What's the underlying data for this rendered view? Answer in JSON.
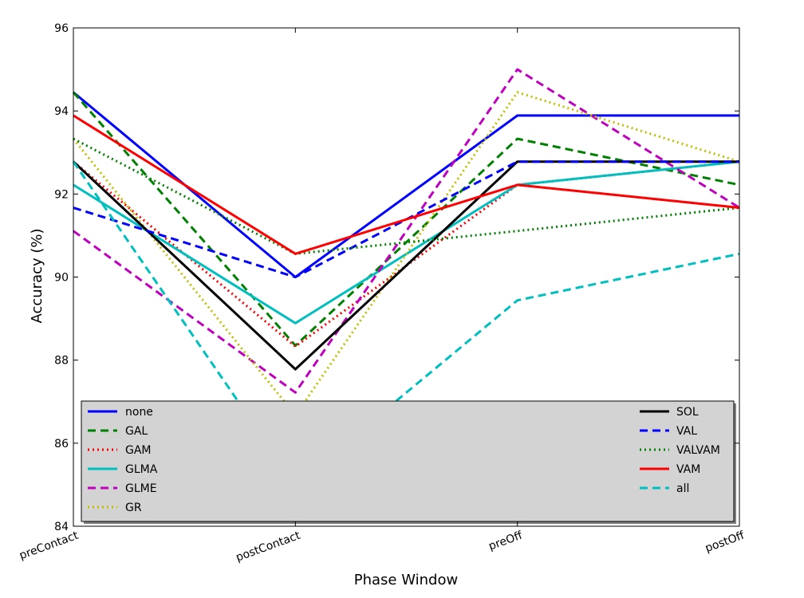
{
  "chart_data": {
    "type": "line",
    "xlabel": "Phase Window",
    "ylabel": "Accuracy (%)",
    "categories": [
      "preContact",
      "postContact",
      "preOff",
      "postOff"
    ],
    "ylim": [
      84,
      96
    ],
    "yticks": [
      84,
      86,
      88,
      90,
      92,
      94,
      96
    ],
    "grid": false,
    "legend_placement": "lower-center",
    "series": [
      {
        "name": "none",
        "values": [
          94.45,
          90.0,
          93.89,
          93.89
        ],
        "color": "#0000ff",
        "style": "solid"
      },
      {
        "name": "GAL",
        "values": [
          94.45,
          88.35,
          93.33,
          92.22
        ],
        "color": "#008000",
        "style": "dashed"
      },
      {
        "name": "GAM",
        "values": [
          92.78,
          88.33,
          92.22,
          92.78
        ],
        "color": "#ff0000",
        "style": "dotted"
      },
      {
        "name": "GLMA",
        "values": [
          92.22,
          88.89,
          92.22,
          92.78
        ],
        "color": "#00bfbf",
        "style": "solid"
      },
      {
        "name": "GLME",
        "values": [
          91.11,
          87.22,
          95.0,
          91.67
        ],
        "color": "#bf00bf",
        "style": "dashed"
      },
      {
        "name": "GR",
        "values": [
          93.33,
          86.67,
          94.45,
          92.78
        ],
        "color": "#bfbf00",
        "style": "dotted"
      },
      {
        "name": "SOL",
        "values": [
          92.78,
          87.78,
          92.78,
          92.78
        ],
        "color": "#000000",
        "style": "solid"
      },
      {
        "name": "VAL",
        "values": [
          91.67,
          90.0,
          92.78,
          92.78
        ],
        "color": "#0000ff",
        "style": "dashed"
      },
      {
        "name": "VALVAM",
        "values": [
          93.33,
          90.56,
          91.11,
          91.67
        ],
        "color": "#008000",
        "style": "dotted"
      },
      {
        "name": "VAM",
        "values": [
          93.89,
          90.56,
          92.22,
          91.67
        ],
        "color": "#ff0000",
        "style": "solid"
      },
      {
        "name": "all",
        "values": [
          92.78,
          85.0,
          89.44,
          90.56
        ],
        "color": "#00bfbf",
        "style": "dashed"
      }
    ]
  }
}
